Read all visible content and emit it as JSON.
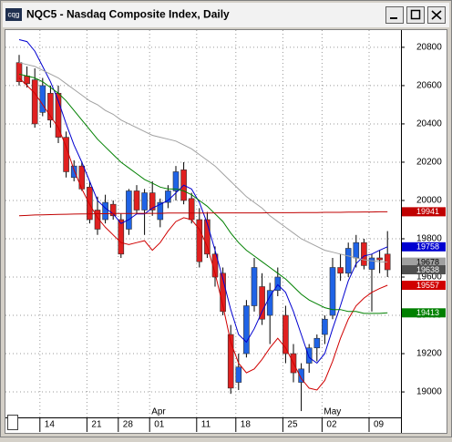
{
  "window": {
    "title": "NQC5 - Nasdaq Composite Index, Daily",
    "icon_text": "cqg"
  },
  "chart_data": {
    "type": "candlestick",
    "categories": [
      null,
      null,
      null,
      "14",
      null,
      null,
      null,
      null,
      null,
      "21",
      null,
      null,
      null,
      "28",
      null,
      null,
      null,
      "01",
      null,
      null,
      null,
      null,
      null,
      "11",
      null,
      null,
      null,
      null,
      "18",
      null,
      null,
      null,
      null,
      null,
      "25",
      null,
      null,
      null,
      null,
      "02",
      null,
      null,
      null,
      null,
      null,
      "09",
      null,
      null
    ],
    "month_labels": [
      null,
      null,
      null,
      null,
      null,
      null,
      null,
      null,
      null,
      null,
      null,
      null,
      null,
      null,
      null,
      null,
      null,
      "Apr",
      null,
      null,
      null,
      null,
      null,
      null,
      null,
      null,
      null,
      null,
      null,
      null,
      null,
      null,
      null,
      null,
      null,
      null,
      null,
      null,
      null,
      "May",
      null,
      null,
      null,
      null,
      null,
      null,
      null,
      null
    ],
    "open": [
      20720,
      20650,
      20630,
      20460,
      20560,
      20560,
      20330,
      20120,
      20180,
      20070,
      19950,
      19900,
      19980,
      19900,
      19850,
      20050,
      19950,
      20040,
      19900,
      19990,
      20050,
      20160,
      20010,
      19900,
      19900,
      19720,
      19620,
      19300,
      19050,
      19200,
      19450,
      19550,
      19400,
      19530,
      19400,
      19200,
      19050,
      19150,
      19230,
      19300,
      19400,
      19650,
      19620,
      19700,
      19780,
      19640,
      19700,
      19720
    ],
    "high": [
      20760,
      20700,
      20690,
      20640,
      20600,
      20600,
      20360,
      20210,
      20200,
      20100,
      20020,
      20030,
      20000,
      19930,
      20060,
      20080,
      20060,
      20100,
      20010,
      20080,
      20180,
      20200,
      20040,
      19960,
      19940,
      19760,
      19650,
      19350,
      19200,
      19480,
      19700,
      19620,
      19570,
      19650,
      19450,
      19250,
      19150,
      19250,
      19300,
      19400,
      19700,
      19720,
      19780,
      19820,
      19800,
      19720,
      19740,
      19840
    ],
    "low": [
      20600,
      20590,
      20380,
      20440,
      20380,
      20300,
      20120,
      20100,
      20050,
      19880,
      19820,
      19880,
      19900,
      19700,
      19820,
      19930,
      19820,
      19920,
      19860,
      19960,
      20000,
      19980,
      19880,
      19650,
      19700,
      19550,
      19400,
      18990,
      19010,
      19180,
      19420,
      19350,
      19250,
      19500,
      19150,
      19050,
      18900,
      19100,
      19160,
      19250,
      19380,
      19580,
      19600,
      19650,
      19640,
      19420,
      19620,
      19600
    ],
    "close": [
      20620,
      20610,
      20400,
      20600,
      20420,
      20330,
      20150,
      20180,
      20060,
      19900,
      19850,
      19990,
      19920,
      19720,
      20050,
      19950,
      20040,
      19950,
      19990,
      20050,
      20150,
      20000,
      19900,
      19680,
      19720,
      19600,
      19420,
      19020,
      19130,
      19450,
      19650,
      19380,
      19530,
      19600,
      19200,
      19100,
      19120,
      19230,
      19280,
      19380,
      19650,
      19620,
      19750,
      19780,
      19660,
      19700,
      19690,
      19638
    ],
    "up_color": "#1f63e6",
    "down_color": "#e02020",
    "close_tag_color": "#505050",
    "series": [
      {
        "color": "#0000d0",
        "values": [
          20840,
          20830,
          20780,
          20700,
          20620,
          20520,
          20400,
          20290,
          20200,
          20100,
          20000,
          19960,
          19930,
          19880,
          19900,
          19930,
          19930,
          19960,
          19980,
          20000,
          20040,
          20080,
          20060,
          19990,
          19880,
          19740,
          19590,
          19430,
          19300,
          19260,
          19330,
          19420,
          19500,
          19560,
          19520,
          19420,
          19300,
          19180,
          19150,
          19200,
          19330,
          19450,
          19580,
          19670,
          19710,
          19720,
          19740,
          19758
        ]
      },
      {
        "color": "#d00000",
        "values": [
          20640,
          20600,
          20560,
          20500,
          20440,
          20380,
          20280,
          20160,
          20060,
          19980,
          19910,
          19860,
          19820,
          19780,
          19770,
          19780,
          19790,
          19740,
          19780,
          19840,
          19890,
          19910,
          19900,
          19850,
          19760,
          19620,
          19450,
          19260,
          19150,
          19100,
          19120,
          19170,
          19230,
          19280,
          19230,
          19150,
          19070,
          19020,
          19010,
          19060,
          19160,
          19280,
          19380,
          19450,
          19490,
          19520,
          19540,
          19557
        ]
      },
      {
        "color": "#008000",
        "values": [
          20660,
          20650,
          20640,
          20620,
          20590,
          20560,
          20520,
          20470,
          20420,
          20370,
          20320,
          20280,
          20240,
          20200,
          20170,
          20140,
          20110,
          20090,
          20070,
          20060,
          20060,
          20050,
          20030,
          20000,
          19970,
          19930,
          19890,
          19830,
          19780,
          19740,
          19710,
          19680,
          19650,
          19620,
          19590,
          19550,
          19510,
          19480,
          19460,
          19440,
          19430,
          19430,
          19420,
          19420,
          19410,
          19410,
          19410,
          19413
        ]
      },
      {
        "color": "#a0a0a0",
        "values": [
          20720,
          20710,
          20700,
          20680,
          20660,
          20640,
          20610,
          20580,
          20550,
          20520,
          20500,
          20470,
          20450,
          20420,
          20400,
          20380,
          20360,
          20340,
          20330,
          20320,
          20310,
          20290,
          20270,
          20240,
          20210,
          20180,
          20140,
          20100,
          20060,
          20020,
          19990,
          19960,
          19920,
          19890,
          19860,
          19830,
          19800,
          19780,
          19760,
          19740,
          19730,
          19720,
          19710,
          19700,
          19690,
          19685,
          19680,
          19678
        ]
      },
      {
        "color": "#c00000",
        "values": [
          19920,
          19922,
          19924,
          19925,
          19926,
          19927,
          19928,
          19929,
          19930,
          19930,
          19931,
          19931,
          19932,
          19932,
          19932,
          19933,
          19933,
          19933,
          19933,
          19934,
          19934,
          19934,
          19934,
          19934,
          19934,
          19935,
          19935,
          19935,
          19935,
          19935,
          19935,
          19935,
          19936,
          19936,
          19936,
          19936,
          19937,
          19937,
          19937,
          19938,
          19938,
          19938,
          19939,
          19939,
          19940,
          19940,
          19941,
          19941
        ]
      }
    ],
    "ylim": [
      18867,
      20890
    ],
    "yticks": [
      19000,
      19200,
      19400,
      19600,
      19800,
      20000,
      20200,
      20400,
      20600,
      20800
    ],
    "grid": true
  }
}
